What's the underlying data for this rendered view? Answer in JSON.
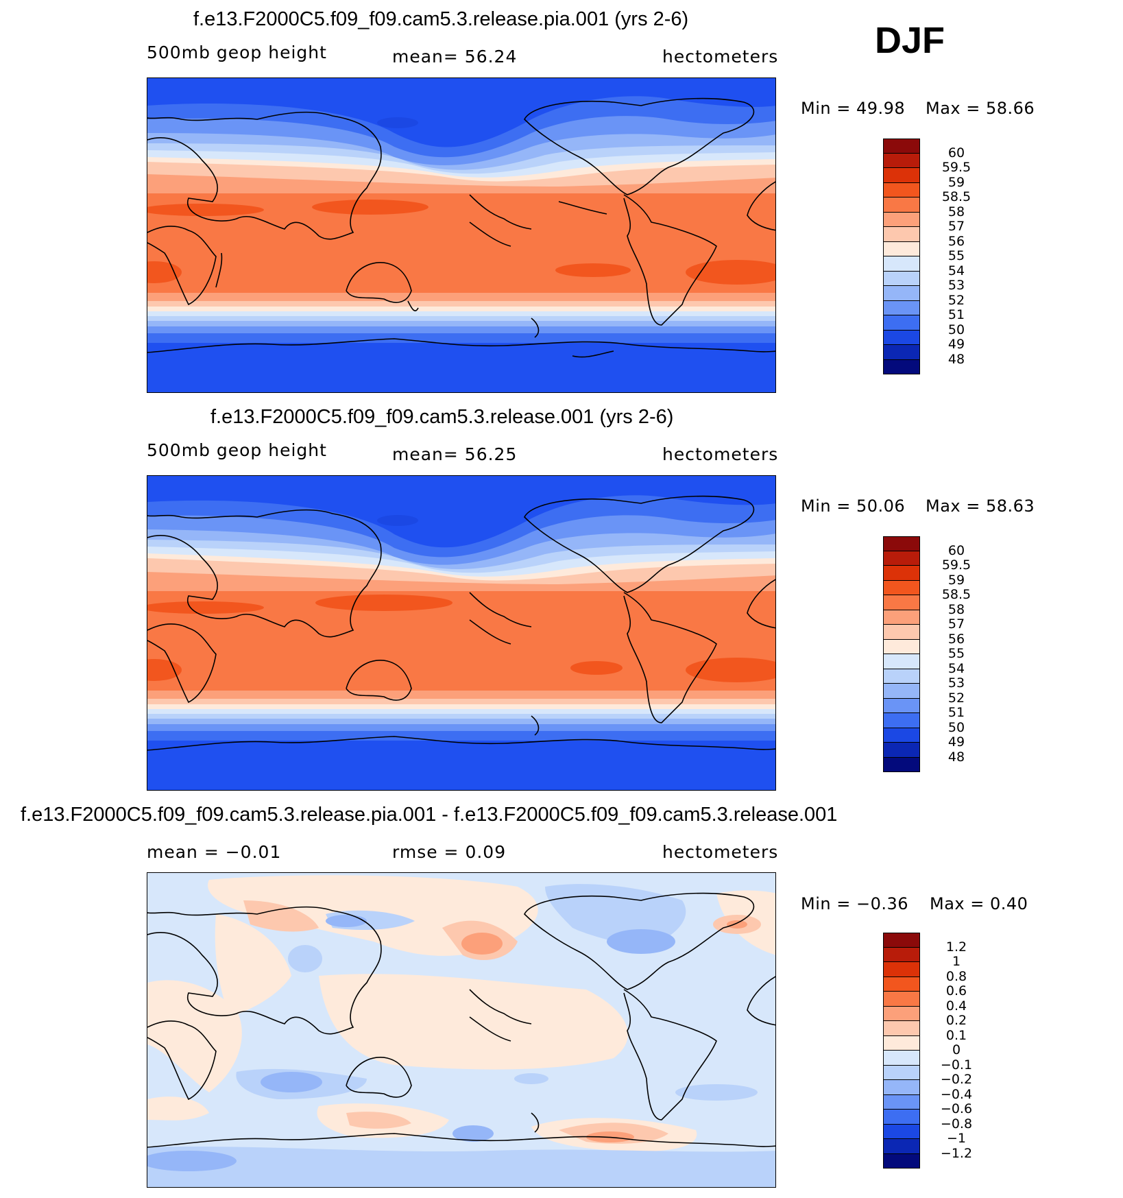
{
  "season": "DJF",
  "panels": [
    {
      "title": "f.e13.F2000C5.f09_f09.cam5.3.release.pia.001 (yrs 2-6)",
      "left_label": "500mb geop height",
      "center_label": "mean=   56.24",
      "right_label": "hectometers",
      "min_text": "Min =   49.98",
      "max_text": "Max =   58.66",
      "colorbar_labels": [
        "60",
        "59.5",
        "59",
        "58.5",
        "58",
        "57",
        "56",
        "55",
        "54",
        "53",
        "52",
        "51",
        "50",
        "49",
        "48"
      ],
      "colors": [
        "#8b0a0a",
        "#b81c0a",
        "#dc3208",
        "#f2561e",
        "#f97845",
        "#fca07a",
        "#fdc8ae",
        "#feeadb",
        "#d7e7fb",
        "#b9d2fa",
        "#95b6f8",
        "#6a94f6",
        "#3d6ef2",
        "#1b48e4",
        "#0b27b4",
        "#030a7c"
      ]
    },
    {
      "title": "f.e13.F2000C5.f09_f09.cam5.3.release.001 (yrs 2-6)",
      "left_label": "500mb geop height",
      "center_label": "mean=   56.25",
      "right_label": "hectometers",
      "min_text": "Min =   50.06",
      "max_text": "Max =   58.63",
      "colorbar_labels": [
        "60",
        "59.5",
        "59",
        "58.5",
        "58",
        "57",
        "56",
        "55",
        "54",
        "53",
        "52",
        "51",
        "50",
        "49",
        "48"
      ],
      "colors": [
        "#8b0a0a",
        "#b81c0a",
        "#dc3208",
        "#f2561e",
        "#f97845",
        "#fca07a",
        "#fdc8ae",
        "#feeadb",
        "#d7e7fb",
        "#b9d2fa",
        "#95b6f8",
        "#6a94f6",
        "#3d6ef2",
        "#1b48e4",
        "#0b27b4",
        "#030a7c"
      ]
    },
    {
      "title": "f.e13.F2000C5.f09_f09.cam5.3.release.pia.001 - f.e13.F2000C5.f09_f09.cam5.3.release.001",
      "left_label": "mean =   −0.01",
      "center_label": "rmse =    0.09",
      "right_label": "hectometers",
      "min_text": "Min =  −0.36",
      "max_text": "Max =    0.40",
      "colorbar_labels": [
        "1.2",
        "1",
        "0.8",
        "0.6",
        "0.4",
        "0.2",
        "0.1",
        "0",
        "−0.1",
        "−0.2",
        "−0.4",
        "−0.6",
        "−0.8",
        "−1",
        "−1.2"
      ],
      "colors": [
        "#8b0a0a",
        "#b81c0a",
        "#dc3208",
        "#f2561e",
        "#f97845",
        "#fca07a",
        "#fdc8ae",
        "#feeadb",
        "#d7e7fb",
        "#b9d2fa",
        "#95b6f8",
        "#6a94f6",
        "#3d6ef2",
        "#1b48e4",
        "#0b27b4",
        "#030a7c"
      ]
    }
  ],
  "chart_data": [
    {
      "type": "heatmap",
      "title": "f.e13.F2000C5.f09_f09.cam5.3.release.pia.001 (yrs 2-6)",
      "variable": "500mb geop height",
      "units": "hectometers",
      "mean": 56.24,
      "min": 49.98,
      "max": 58.66,
      "contour_levels": [
        48,
        49,
        50,
        51,
        52,
        53,
        54,
        55,
        56,
        57,
        58,
        58.5,
        59,
        59.5,
        60
      ]
    },
    {
      "type": "heatmap",
      "title": "f.e13.F2000C5.f09_f09.cam5.3.release.001 (yrs 2-6)",
      "variable": "500mb geop height",
      "units": "hectometers",
      "mean": 56.25,
      "min": 50.06,
      "max": 58.63,
      "contour_levels": [
        48,
        49,
        50,
        51,
        52,
        53,
        54,
        55,
        56,
        57,
        58,
        58.5,
        59,
        59.5,
        60
      ]
    },
    {
      "type": "heatmap",
      "title": "f.e13.F2000C5.f09_f09.cam5.3.release.pia.001 - f.e13.F2000C5.f09_f09.cam5.3.release.001",
      "units": "hectometers",
      "mean": -0.01,
      "rmse": 0.09,
      "min": -0.36,
      "max": 0.4,
      "contour_levels": [
        -1.2,
        -1,
        -0.8,
        -0.6,
        -0.4,
        -0.2,
        -0.1,
        0,
        0.1,
        0.2,
        0.4,
        0.6,
        0.8,
        1,
        1.2
      ]
    }
  ]
}
